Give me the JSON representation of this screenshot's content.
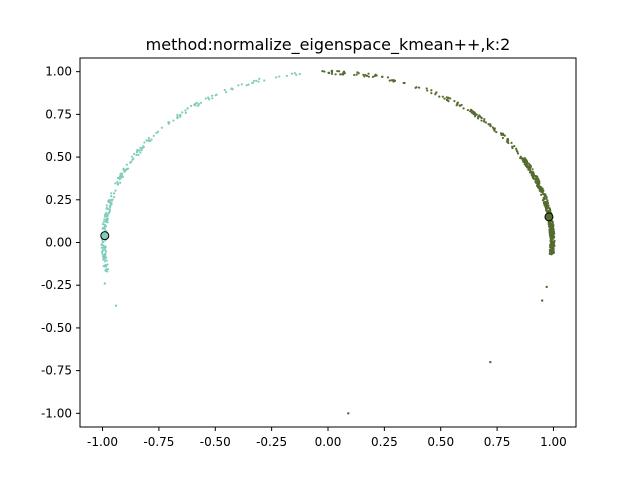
{
  "chart_data": {
    "type": "scatter",
    "title": "method:normalize_eigenspace_kmean++,k:2",
    "xlabel": "",
    "ylabel": "",
    "xlim": [
      -1.1,
      1.1
    ],
    "ylim": [
      -1.08,
      1.08
    ],
    "x_ticks": [
      "-1.00",
      "-0.75",
      "-0.50",
      "-0.25",
      "0.00",
      "0.25",
      "0.50",
      "0.75",
      "1.00"
    ],
    "y_ticks": [
      "1.00",
      "0.75",
      "0.50",
      "0.25",
      "0.00",
      "-0.25",
      "-0.50",
      "-0.75",
      "-1.00"
    ],
    "grid": false,
    "legend": "none",
    "colors": {
      "cluster_0": "#7fcdbb",
      "cluster_1": "#556b2f",
      "centroid_edge": "#000000"
    },
    "series": [
      {
        "arc_angles_deg": [
          [
            95,
            115
          ],
          [
            115,
            140
          ],
          [
            140,
            165
          ],
          [
            165,
            190
          ]
        ],
        "extra_points": [
          {
            "x": -0.94,
            "y": -0.37
          },
          {
            "x": -0.99,
            "y": -0.24
          }
        ],
        "centroid": {
          "x": -0.99,
          "y": 0.04
        }
      },
      {
        "arc_angles_deg": [
          [
            -4,
            10
          ],
          [
            10,
            30
          ],
          [
            30,
            55
          ],
          [
            55,
            75
          ],
          [
            75,
            92
          ]
        ],
        "extra_points": [
          {
            "x": 0.95,
            "y": -0.34
          },
          {
            "x": 0.97,
            "y": -0.26
          },
          {
            "x": 0.72,
            "y": -0.7
          },
          {
            "x": 0.09,
            "y": -1.0
          },
          {
            "x": 0.99,
            "y": -0.03
          }
        ],
        "centroid": {
          "x": 0.98,
          "y": 0.15
        }
      }
    ]
  }
}
